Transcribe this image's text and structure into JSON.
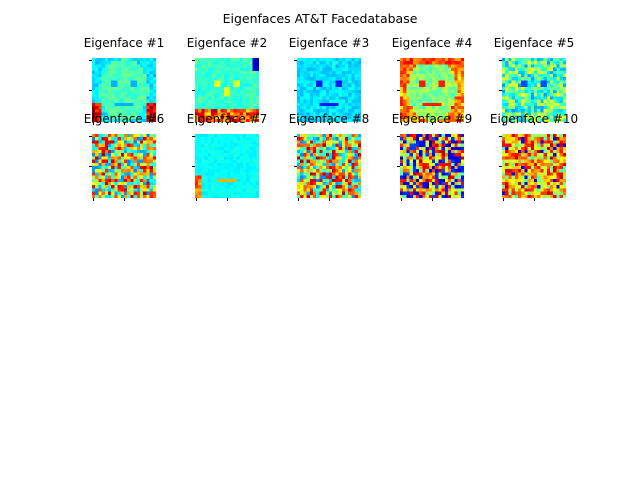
{
  "figure": {
    "title": "Eigenfaces AT&T Facedatabase"
  },
  "chart_data": {
    "type": "heatmap",
    "colormap": "jet",
    "grid": false,
    "panels": [
      {
        "title": "Eigenface #1",
        "pattern": "face-low",
        "seed": 11
      },
      {
        "title": "Eigenface #2",
        "pattern": "face-bottom",
        "seed": 23
      },
      {
        "title": "Eigenface #3",
        "pattern": "face-cool",
        "seed": 37
      },
      {
        "title": "Eigenface #4",
        "pattern": "face-warm",
        "seed": 41
      },
      {
        "title": "Eigenface #5",
        "pattern": "face-mixed",
        "seed": 53
      },
      {
        "title": "Eigenface #6",
        "pattern": "noise-mid",
        "seed": 67
      },
      {
        "title": "Eigenface #7",
        "pattern": "face-flat",
        "seed": 71
      },
      {
        "title": "Eigenface #8",
        "pattern": "noise-mid",
        "seed": 83
      },
      {
        "title": "Eigenface #9",
        "pattern": "noise-high",
        "seed": 97
      },
      {
        "title": "Eigenface #10",
        "pattern": "noise-warm",
        "seed": 101
      }
    ]
  }
}
